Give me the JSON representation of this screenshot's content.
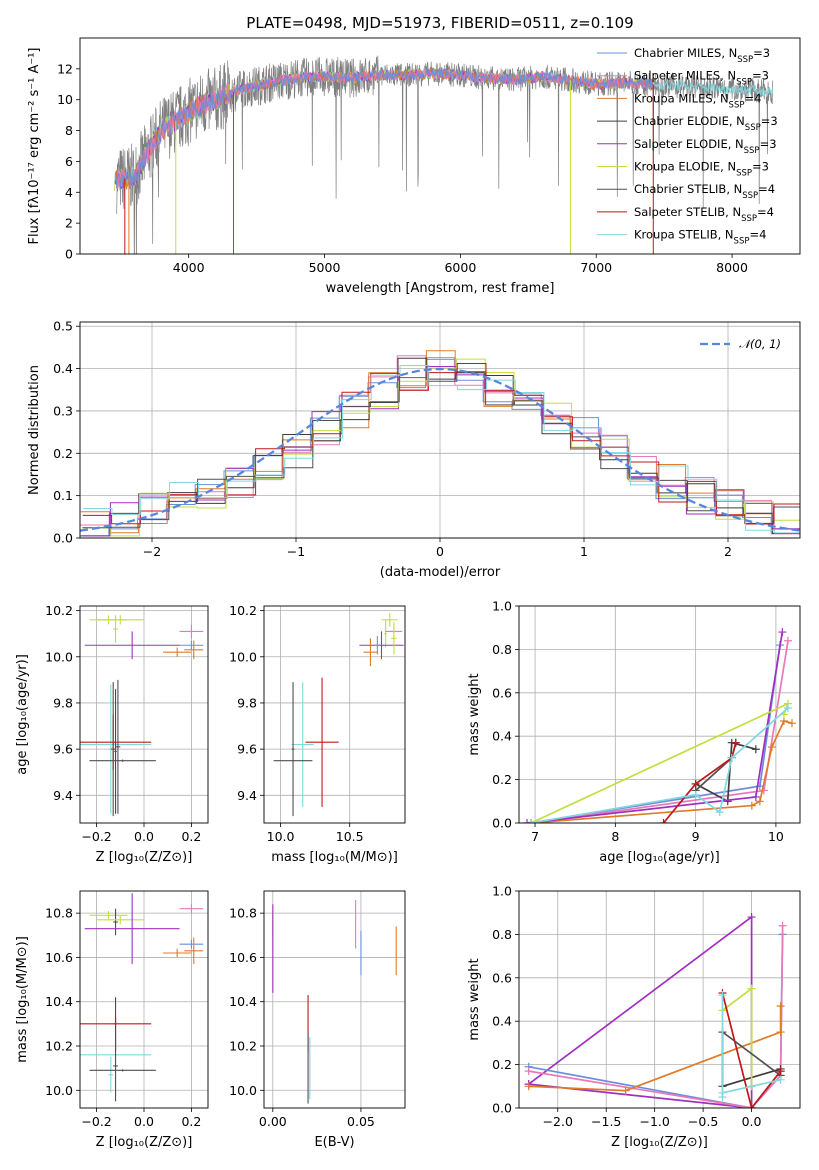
{
  "colors": {
    "chabrier_miles": "#6a8fd8",
    "salpeter_miles": "#e879b8",
    "kroupa_miles": "#e07b2a",
    "chabrier_elodie": "#3d3d3d",
    "salpeter_elodie": "#a030c0",
    "kroupa_elodie": "#c0e040",
    "chabrier_stelib": "#505050",
    "salpeter_stelib": "#c01818",
    "kroupa_stelib": "#80d8e0",
    "spectrum": "#7f7f7f",
    "normal": "#5588dd",
    "grid": "#b0b0b0"
  },
  "chart_data": [
    {
      "type": "line",
      "title": "PLATE=0498, MJD=51973, FIBERID=0511, z=0.109",
      "xlabel": "wavelength [Angstrom, rest frame]",
      "ylabel": "Flux [fλ10⁻¹⁷ erg cm⁻² s⁻¹ A⁻¹]",
      "xlim": [
        3200,
        8500
      ],
      "ylim": [
        0,
        14
      ],
      "xticks": [
        "4000",
        "5000",
        "6000",
        "7000",
        "8000"
      ],
      "yticks": [
        "0",
        "2",
        "4",
        "6",
        "8",
        "10",
        "12"
      ],
      "grid": false,
      "legend_position": "top-right",
      "legend": [
        {
          "name": "Chabrier MILES, N",
          "sub": "SSP",
          "tail": "=3",
          "color_key": "chabrier_miles"
        },
        {
          "name": "Salpeter MILES, N",
          "sub": "SSP",
          "tail": "=3",
          "color_key": "salpeter_miles"
        },
        {
          "name": "Kroupa MILES, N",
          "sub": "SSP",
          "tail": "=4",
          "color_key": "kroupa_miles"
        },
        {
          "name": "Chabrier ELODIE, N",
          "sub": "SSP",
          "tail": "=3",
          "color_key": "chabrier_elodie"
        },
        {
          "name": "Salpeter ELODIE, N",
          "sub": "SSP",
          "tail": "=3",
          "color_key": "salpeter_elodie"
        },
        {
          "name": "Kroupa ELODIE, N",
          "sub": "SSP",
          "tail": "=3",
          "color_key": "kroupa_elodie"
        },
        {
          "name": "Chabrier STELIB, N",
          "sub": "SSP",
          "tail": "=4",
          "color_key": "chabrier_stelib"
        },
        {
          "name": "Salpeter STELIB, N",
          "sub": "SSP",
          "tail": "=4",
          "color_key": "salpeter_stelib"
        },
        {
          "name": "Kroupa STELIB, N",
          "sub": "SSP",
          "tail": "=4",
          "color_key": "kroupa_stelib"
        }
      ],
      "observed_continuum": {
        "x": [
          3470,
          3600,
          3700,
          3800,
          3900,
          4000,
          4100,
          4200,
          4300,
          4400,
          4600,
          4800,
          5000,
          5200,
          5400,
          5600,
          5800,
          6000,
          6200,
          6400,
          6600,
          6800,
          7000,
          7200,
          7400,
          7600,
          7800,
          8000,
          8200,
          8300
        ],
        "y": [
          4.8,
          5.0,
          6.6,
          8.0,
          8.6,
          9.2,
          9.7,
          10.0,
          10.4,
          10.7,
          11.1,
          11.4,
          11.5,
          11.4,
          11.6,
          11.6,
          11.7,
          11.6,
          11.4,
          11.3,
          11.5,
          11.3,
          11.0,
          11.1,
          11.0,
          10.9,
          10.8,
          10.7,
          10.6,
          10.5
        ]
      },
      "model_continuum": {
        "x": [
          3450,
          3600,
          3700,
          3800,
          3900,
          4000,
          4100,
          4200,
          4400,
          4600,
          4800,
          5000,
          5400,
          5800,
          6200,
          6600,
          7000,
          7300,
          7420
        ],
        "y": [
          4.5,
          5.0,
          6.5,
          8.0,
          8.8,
          9.1,
          9.7,
          10.0,
          10.7,
          11.2,
          11.4,
          11.5,
          11.6,
          11.7,
          11.5,
          11.5,
          11.3,
          11.0,
          11.0
        ]
      }
    },
    {
      "type": "line",
      "xlabel": "(data-model)/error",
      "ylabel": "Normed distribution",
      "xlim": [
        -2.5,
        2.5
      ],
      "ylim": [
        0,
        0.51
      ],
      "xticks": [
        "−2",
        "−1",
        "0",
        "1",
        "2"
      ],
      "yticks": [
        "0.0",
        "0.1",
        "0.2",
        "0.3",
        "0.4",
        "0.5"
      ],
      "grid": true,
      "legend_position": "top-right",
      "legend": [
        {
          "name": "𝒩(0, 1)",
          "color_key": "normal"
        }
      ],
      "histogram_bins": [
        -2.5,
        -2.3,
        -2.1,
        -1.9,
        -1.7,
        -1.5,
        -1.3,
        -1.1,
        -0.9,
        -0.7,
        -0.5,
        -0.3,
        -0.1,
        0.1,
        0.3,
        0.5,
        0.7,
        0.9,
        1.1,
        1.3,
        1.5,
        1.7,
        1.9,
        2.1,
        2.3,
        2.5
      ],
      "histogram_reference": [
        0.03,
        0.04,
        0.07,
        0.09,
        0.11,
        0.13,
        0.17,
        0.21,
        0.26,
        0.3,
        0.35,
        0.39,
        0.4,
        0.38,
        0.35,
        0.31,
        0.28,
        0.24,
        0.2,
        0.16,
        0.13,
        0.1,
        0.08,
        0.06,
        0.04
      ]
    },
    {
      "type": "scatter",
      "xlabel": "Z [log₁₀(Z/Z⊙)]",
      "ylabel": "age  [log₁₀(age/yr)]",
      "xlim": [
        -0.27,
        0.27
      ],
      "ylim": [
        9.28,
        10.22
      ],
      "xticks": [
        "−0.2",
        "0.0",
        "0.2"
      ],
      "yticks": [
        "9.4",
        "9.6",
        "9.8",
        "10.0",
        "10.2"
      ],
      "grid": true,
      "errorbars": [
        {
          "k": "kroupa_elodie",
          "x": -0.15,
          "xe": 0.08,
          "y": 10.16,
          "ye": 0.02
        },
        {
          "k": "kroupa_elodie",
          "x": -0.1,
          "xe": 0.1,
          "y": 10.16,
          "ye": 0.02
        },
        {
          "k": "kroupa_elodie",
          "x": -0.12,
          "xe": 0.01,
          "y": 10.12,
          "ye": 0.06
        },
        {
          "k": "salpeter_miles",
          "x": 0.2,
          "xe": 0.05,
          "y": 10.11,
          "ye": 0.03
        },
        {
          "k": "salpeter_elodie",
          "x": -0.05,
          "xe": 0.2,
          "y": 10.05,
          "ye": 0.06
        },
        {
          "k": "chabrier_miles",
          "x": 0.2,
          "xe": 0.05,
          "y": 10.05,
          "ye": 0.02
        },
        {
          "k": "kroupa_miles",
          "x": 0.21,
          "xe": 0.04,
          "y": 10.03,
          "ye": 0.04
        },
        {
          "k": "kroupa_miles",
          "x": 0.14,
          "xe": 0.06,
          "y": 10.02,
          "ye": 0.02
        },
        {
          "k": "kroupa_stelib",
          "x": -0.14,
          "xe": 0.01,
          "y": 9.6,
          "ye": 0.28
        },
        {
          "k": "kroupa_stelib",
          "x": -0.12,
          "xe": 0.15,
          "y": 9.62,
          "ye": 0.01
        },
        {
          "k": "salpeter_stelib",
          "x": -0.13,
          "xe": 0.16,
          "y": 9.63,
          "ye": 0.12
        },
        {
          "k": "salpeter_stelib",
          "x": -0.12,
          "xe": 0.005,
          "y": 9.59,
          "ye": 0.27
        },
        {
          "k": "chabrier_stelib",
          "x": -0.13,
          "xe": 0.01,
          "y": 9.6,
          "ye": 0.29
        },
        {
          "k": "chabrier_stelib",
          "x": -0.11,
          "xe": 0.01,
          "y": 9.61,
          "ye": 0.29
        },
        {
          "k": "chabrier_stelib",
          "x": -0.09,
          "xe": 0.14,
          "y": 9.55,
          "ye": 0.005
        }
      ]
    },
    {
      "type": "scatter",
      "xlabel": "mass [log₁₀(M/M⊙)]",
      "ylabel": "",
      "xlim": [
        9.88,
        10.9
      ],
      "ylim": [
        9.28,
        10.22
      ],
      "xticks": [
        "10.0",
        "10.5"
      ],
      "yticks": [
        "9.4",
        "9.6",
        "9.8",
        "10.0",
        "10.2"
      ],
      "grid": true,
      "errorbars": [
        {
          "k": "kroupa_elodie",
          "x": 10.79,
          "xe": 0.06,
          "y": 10.16,
          "ye": 0.03
        },
        {
          "k": "kroupa_elodie",
          "x": 10.76,
          "xe": 0.01,
          "y": 10.1,
          "ye": 0.06
        },
        {
          "k": "salpeter_miles",
          "x": 10.82,
          "xe": 0.06,
          "y": 10.11,
          "ye": 0.03
        },
        {
          "k": "salpeter_elodie",
          "x": 10.73,
          "xe": 0.16,
          "y": 10.05,
          "ye": 0.06
        },
        {
          "k": "chabrier_miles",
          "x": 10.7,
          "xe": 0.02,
          "y": 10.05,
          "ye": 0.04
        },
        {
          "k": "kroupa_miles",
          "x": 10.65,
          "xe": 0.05,
          "y": 10.02,
          "ye": 0.06
        },
        {
          "k": "kroupa_elodie",
          "x": 10.82,
          "xe": 0.02,
          "y": 10.08,
          "ye": 0.07
        },
        {
          "k": "salpeter_stelib",
          "x": 10.3,
          "xe": 0.12,
          "y": 9.63,
          "ye": 0.28
        },
        {
          "k": "kroupa_stelib",
          "x": 10.16,
          "xe": 0.08,
          "y": 9.62,
          "ye": 0.27
        },
        {
          "k": "chabrier_stelib",
          "x": 10.09,
          "xe": 0.01,
          "y": 9.6,
          "ye": 0.29
        },
        {
          "k": "chabrier_stelib",
          "x": 10.09,
          "xe": 0.14,
          "y": 9.55,
          "ye": 0.005
        }
      ]
    },
    {
      "type": "line",
      "xlabel": "age  [log₁₀(age/yr)]",
      "ylabel": "mass weight",
      "xlim": [
        6.8,
        10.3
      ],
      "ylim": [
        0,
        1
      ],
      "xticks": [
        "7",
        "8",
        "9",
        "10"
      ],
      "yticks": [
        "0.0",
        "0.2",
        "0.4",
        "0.6",
        "0.8",
        "1.0"
      ],
      "grid": true,
      "series": [
        {
          "k": "chabrier_miles",
          "x": [
            6.95,
            9.8,
            10.05
          ],
          "y": [
            0.0,
            0.17,
            0.82
          ]
        },
        {
          "k": "salpeter_miles",
          "x": [
            6.95,
            9.85,
            10.15
          ],
          "y": [
            0.0,
            0.15,
            0.84
          ]
        },
        {
          "k": "kroupa_miles",
          "x": [
            6.95,
            9.7,
            9.8,
            9.95,
            10.1,
            10.2
          ],
          "y": [
            0.0,
            0.08,
            0.1,
            0.35,
            0.47,
            0.46
          ]
        },
        {
          "k": "chabrier_elodie",
          "x": [
            9.0,
            9.4,
            9.45,
            9.75
          ],
          "y": [
            0.18,
            0.1,
            0.37,
            0.34
          ]
        },
        {
          "k": "salpeter_elodie",
          "x": [
            6.9,
            9.75,
            10.08
          ],
          "y": [
            0.0,
            0.12,
            0.88
          ]
        },
        {
          "k": "kroupa_elodie",
          "x": [
            6.95,
            10.15,
            10.1
          ],
          "y": [
            0.0,
            0.55,
            0.5
          ]
        },
        {
          "k": "chabrier_stelib",
          "x": [
            9.0,
            9.45,
            9.5
          ],
          "y": [
            0.15,
            0.3,
            0.37
          ]
        },
        {
          "k": "salpeter_stelib",
          "x": [
            8.6,
            9.0,
            9.45,
            9.5
          ],
          "y": [
            0.0,
            0.18,
            0.3,
            0.37
          ]
        },
        {
          "k": "kroupa_stelib",
          "x": [
            6.95,
            9.0,
            9.3,
            9.45,
            10.15
          ],
          "y": [
            0.0,
            0.13,
            0.05,
            0.3,
            0.53
          ]
        }
      ]
    },
    {
      "type": "scatter",
      "xlabel": "Z [log₁₀(Z/Z⊙)]",
      "ylabel": "mass [log₁₀(M/M⊙)]",
      "xlim": [
        -0.27,
        0.27
      ],
      "ylim": [
        9.92,
        10.9
      ],
      "xticks": [
        "−0.2",
        "0.0",
        "0.2"
      ],
      "yticks": [
        "10.0",
        "10.2",
        "10.4",
        "10.6",
        "10.8"
      ],
      "grid": true,
      "errorbars": [
        {
          "k": "salpeter_miles",
          "x": 0.2,
          "xe": 0.05,
          "y": 10.82,
          "ye": 0.02
        },
        {
          "k": "kroupa_elodie",
          "x": -0.15,
          "xe": 0.08,
          "y": 10.79,
          "ye": 0.02
        },
        {
          "k": "chabrier_stelib",
          "x": -0.12,
          "xe": 0.01,
          "y": 10.76,
          "ye": 0.06
        },
        {
          "k": "kroupa_elodie",
          "x": -0.1,
          "xe": 0.1,
          "y": 10.77,
          "ye": 0.02
        },
        {
          "k": "salpeter_elodie",
          "x": -0.05,
          "xe": 0.2,
          "y": 10.73,
          "ye": 0.16
        },
        {
          "k": "chabrier_miles",
          "x": 0.2,
          "xe": 0.05,
          "y": 10.66,
          "ye": 0.02
        },
        {
          "k": "kroupa_miles",
          "x": 0.21,
          "xe": 0.04,
          "y": 10.63,
          "ye": 0.06
        },
        {
          "k": "kroupa_miles",
          "x": 0.14,
          "xe": 0.06,
          "y": 10.62,
          "ye": 0.02
        },
        {
          "k": "salpeter_stelib",
          "x": -0.12,
          "xe": 0.15,
          "y": 10.3,
          "ye": 0.12
        },
        {
          "k": "salpeter_stelib",
          "x": -0.12,
          "xe": 0.005,
          "y": 10.3,
          "ye": 0.03
        },
        {
          "k": "kroupa_stelib",
          "x": -0.14,
          "xe": 0.01,
          "y": 10.07,
          "ye": 0.08
        },
        {
          "k": "kroupa_stelib",
          "x": -0.12,
          "xe": 0.15,
          "y": 10.16,
          "ye": 0.005
        },
        {
          "k": "chabrier_stelib",
          "x": -0.12,
          "xe": 0.01,
          "y": 10.11,
          "ye": 0.16
        },
        {
          "k": "chabrier_stelib",
          "x": -0.09,
          "xe": 0.14,
          "y": 10.09,
          "ye": 0.005
        }
      ]
    },
    {
      "type": "scatter",
      "xlabel": "E(B-V)",
      "ylabel": "",
      "xlim": [
        -0.005,
        0.075
      ],
      "ylim": [
        9.92,
        10.9
      ],
      "xticks": [
        "0.00",
        "0.05"
      ],
      "yticks": [
        "10.0",
        "10.2",
        "10.4",
        "10.6",
        "10.8"
      ],
      "grid": true,
      "errorbars": [
        {
          "k": "kroupa_elodie",
          "x": 0.0,
          "xe": 0.0,
          "y": 10.75,
          "ye": 0.06
        },
        {
          "k": "salpeter_elodie",
          "x": 0.0,
          "xe": 0.0,
          "y": 10.64,
          "ye": 0.2
        },
        {
          "k": "salpeter_miles",
          "x": 0.047,
          "xe": 0.0,
          "y": 10.75,
          "ye": 0.11
        },
        {
          "k": "chabrier_miles",
          "x": 0.05,
          "xe": 0.0,
          "y": 10.62,
          "ye": 0.1
        },
        {
          "k": "kroupa_miles",
          "x": 0.07,
          "xe": 0.0,
          "y": 10.63,
          "ye": 0.11
        },
        {
          "k": "salpeter_stelib",
          "x": 0.02,
          "xe": 0.0,
          "y": 10.3,
          "ye": 0.13
        },
        {
          "k": "kroupa_stelib",
          "x": 0.021,
          "xe": 0.0,
          "y": 10.1,
          "ye": 0.14
        },
        {
          "k": "chabrier_stelib",
          "x": 0.02,
          "xe": 0.0,
          "y": 10.1,
          "ye": 0.16
        }
      ]
    },
    {
      "type": "line",
      "xlabel": "Z [log₁₀(Z/Z⊙)]",
      "ylabel": "mass weight",
      "xlim": [
        -2.4,
        0.5
      ],
      "ylim": [
        0,
        1
      ],
      "xticks": [
        "−2.0",
        "−1.5",
        "−1.0",
        "−0.5",
        "0.0"
      ],
      "yticks": [
        "0.0",
        "0.2",
        "0.4",
        "0.6",
        "0.8",
        "1.0"
      ],
      "grid": true,
      "series": [
        {
          "k": "salpeter_elodie",
          "x": [
            -2.3,
            0.0,
            0.0,
            -2.3
          ],
          "y": [
            0.11,
            0.88,
            0.0,
            0.11
          ]
        },
        {
          "k": "chabrier_miles",
          "x": [
            -2.3,
            0.0,
            0.3,
            0.32
          ],
          "y": [
            0.19,
            0.0,
            0.17,
            0.8
          ]
        },
        {
          "k": "salpeter_miles",
          "x": [
            -2.3,
            0.0,
            0.3,
            0.32
          ],
          "y": [
            0.17,
            0.0,
            0.15,
            0.84
          ]
        },
        {
          "k": "kroupa_miles",
          "x": [
            -2.3,
            -1.3,
            0.3,
            0.3
          ],
          "y": [
            0.1,
            0.08,
            0.35,
            0.47
          ]
        },
        {
          "k": "chabrier_elodie",
          "x": [
            -0.3,
            -0.3,
            0.3
          ],
          "y": [
            0.35,
            0.1,
            0.18
          ]
        },
        {
          "k": "kroupa_elodie",
          "x": [
            -0.3,
            0.0,
            0.0
          ],
          "y": [
            0.45,
            0.55,
            0.1
          ]
        },
        {
          "k": "chabrier_stelib",
          "x": [
            -0.3,
            0.3
          ],
          "y": [
            0.35,
            0.15
          ]
        },
        {
          "k": "salpeter_stelib",
          "x": [
            -0.3,
            0.0,
            0.3
          ],
          "y": [
            0.53,
            0.0,
            0.17
          ]
        },
        {
          "k": "kroupa_stelib",
          "x": [
            -0.3,
            -0.3,
            -0.3,
            0.3
          ],
          "y": [
            0.52,
            0.05,
            0.07,
            0.13
          ]
        }
      ]
    }
  ]
}
